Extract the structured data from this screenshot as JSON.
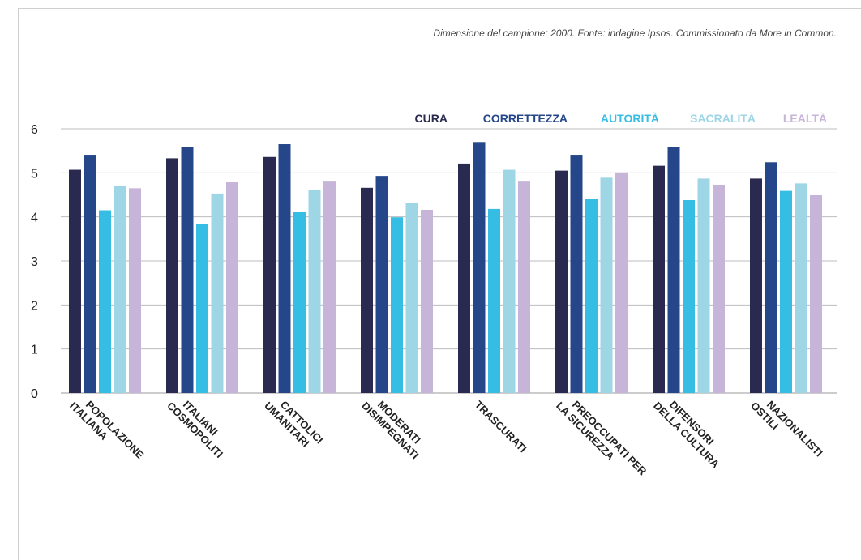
{
  "source_note": "Dimensione del campione: 2000. Fonte: indagine Ipsos. Commissionato da More in Common.",
  "chart_data": {
    "type": "bar",
    "ylim": [
      0,
      6
    ],
    "yticks": [
      "0",
      "1",
      "2",
      "3",
      "4",
      "5",
      "6"
    ],
    "grid": true,
    "legend_position": "top-right",
    "categories": [
      [
        "POPOLAZIONE",
        "ITALIANA"
      ],
      [
        "ITALIANI",
        "COSMOPOLITI"
      ],
      [
        "CATTOLICI",
        "UMANITARI"
      ],
      [
        "MODERATI",
        "DISIMPEGNATI"
      ],
      [
        "TRASCURATI"
      ],
      [
        "PREOCCUPATI PER",
        "LA SICUREZZA"
      ],
      [
        "DIFENSORI",
        "DELLA CULTURA"
      ],
      [
        "NAZIONALISTI",
        "OSTILI"
      ]
    ],
    "series": [
      {
        "name": "CURA",
        "color": "#2a2a50",
        "values": [
          5.07,
          5.33,
          5.36,
          4.66,
          5.21,
          5.05,
          5.16,
          4.87
        ]
      },
      {
        "name": "CORRETTEZZA",
        "color": "#25478a",
        "values": [
          5.41,
          5.59,
          5.65,
          4.93,
          5.7,
          5.41,
          5.59,
          5.24
        ]
      },
      {
        "name": "AUTORITÀ",
        "color": "#35bde3",
        "values": [
          4.15,
          3.84,
          4.12,
          3.99,
          4.18,
          4.41,
          4.38,
          4.59
        ]
      },
      {
        "name": "SACRALITÀ",
        "color": "#9ed6e6",
        "values": [
          4.7,
          4.53,
          4.61,
          4.32,
          5.07,
          4.89,
          4.87,
          4.76
        ]
      },
      {
        "name": "LEALTÀ",
        "color": "#c7b5d9",
        "values": [
          4.65,
          4.79,
          4.82,
          4.16,
          4.82,
          5.01,
          4.73,
          4.5
        ]
      }
    ]
  }
}
